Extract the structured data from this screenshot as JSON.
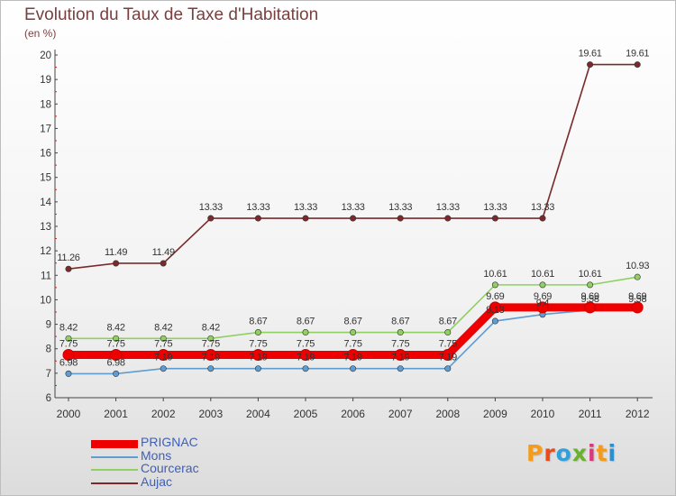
{
  "title": "Evolution du Taux de Taxe d'Habitation",
  "subtitle": "(en %)",
  "logo": {
    "text": "Proxiti",
    "colors": [
      "#f59a1a",
      "#e84b1c",
      "#31a0da",
      "#68b22e",
      "#d93a7a",
      "#f59a1a",
      "#2b8fd0"
    ]
  },
  "chart_data": {
    "type": "line",
    "title": "Evolution du Taux de Taxe d'Habitation",
    "ylabel": "(en %)",
    "xlabel": "",
    "ylim": [
      6,
      20
    ],
    "yticks": [
      6,
      7,
      8,
      9,
      10,
      11,
      12,
      13,
      14,
      15,
      16,
      17,
      18,
      19,
      20
    ],
    "grid": false,
    "legend_position": "bottom-left",
    "categories": [
      "2000",
      "2001",
      "2002",
      "2003",
      "2004",
      "2005",
      "2006",
      "2007",
      "2008",
      "2009",
      "2010",
      "2011",
      "2012"
    ],
    "series": [
      {
        "name": "PRIGNAC",
        "color": "#ee0000",
        "emphasis": true,
        "values": [
          7.75,
          7.75,
          7.75,
          7.75,
          7.75,
          7.75,
          7.75,
          7.75,
          7.75,
          9.69,
          9.69,
          9.69,
          9.69
        ],
        "labels": [
          "7.75",
          "7.75",
          "7.75",
          "7.75",
          "7.75",
          "7.75",
          "7.75",
          "7.75",
          "7.75",
          "9.69",
          "9.69",
          "9.69",
          "9.69"
        ]
      },
      {
        "name": "Mons",
        "color": "#5f9cd0",
        "values": [
          6.98,
          6.98,
          7.19,
          7.19,
          7.19,
          7.19,
          7.19,
          7.19,
          7.19,
          9.13,
          9.4,
          9.58,
          9.58
        ],
        "labels": [
          "6.98",
          "6.98",
          "7.19",
          "7.19",
          "7.19",
          "7.19",
          "7.19",
          "7.19",
          "7.19",
          "9.13",
          "9.4",
          "9.58",
          "9.58"
        ]
      },
      {
        "name": "Courcerac",
        "color": "#8fd060",
        "values": [
          8.42,
          8.42,
          8.42,
          8.42,
          8.67,
          8.67,
          8.67,
          8.67,
          8.67,
          10.61,
          10.61,
          10.61,
          10.93
        ],
        "labels": [
          "8.42",
          "8.42",
          "8.42",
          "8.42",
          "8.67",
          "8.67",
          "8.67",
          "8.67",
          "8.67",
          "10.61",
          "10.61",
          "10.61",
          "10.93"
        ]
      },
      {
        "name": "Aujac",
        "color": "#7a2a2a",
        "values": [
          11.26,
          11.49,
          11.49,
          13.33,
          13.33,
          13.33,
          13.33,
          13.33,
          13.33,
          13.33,
          13.33,
          19.61,
          19.61
        ],
        "labels": [
          "11.26",
          "11.49",
          "11.49",
          "13.33",
          "13.33",
          "13.33",
          "13.33",
          "13.33",
          "13.33",
          "13.33",
          "13.33",
          "19.61",
          "19.61"
        ]
      }
    ]
  }
}
